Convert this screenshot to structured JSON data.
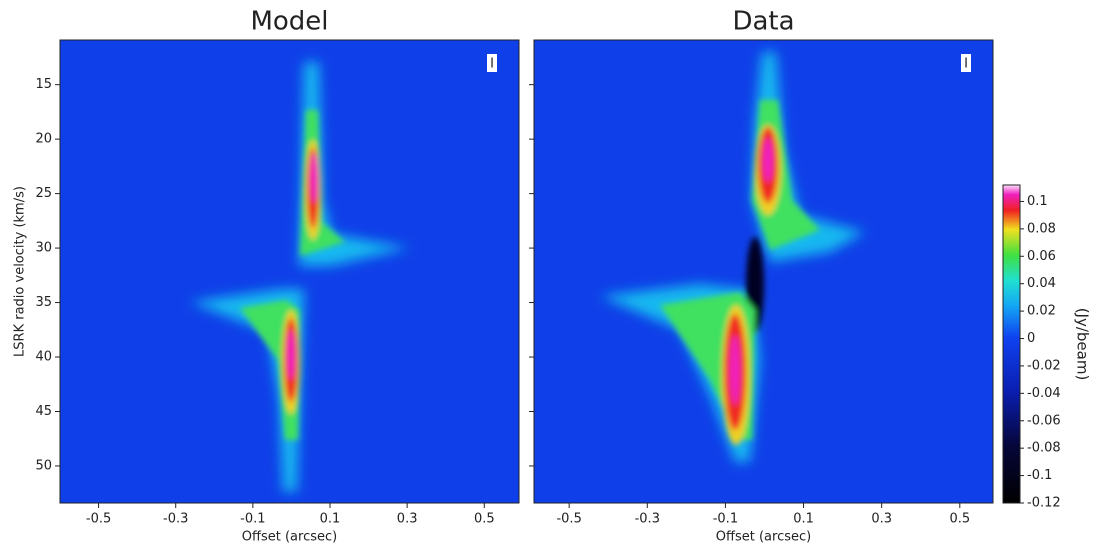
{
  "chart_data": [
    {
      "type": "heatmap",
      "title": "Model",
      "xlabel": "Offset (arcsec)",
      "ylabel": "LSRK radio velocity  (km/s)",
      "xlim": [
        -0.6,
        0.59
      ],
      "xticks": [
        -0.5,
        -0.3,
        -0.1,
        0.1,
        0.3,
        0.5
      ],
      "ylim": [
        10.9,
        53.4
      ],
      "y_inverted": true,
      "yticks": [
        15,
        20,
        25,
        30,
        35,
        40,
        45,
        50
      ],
      "y_tick_labels": true,
      "annotation": "I"
    },
    {
      "type": "heatmap",
      "title": "Data",
      "xlabel": "Offset (arcsec)",
      "xlim": [
        -0.59,
        0.585
      ],
      "xticks": [
        -0.5,
        -0.3,
        -0.1,
        0.1,
        0.3,
        0.5
      ],
      "ylim": [
        10.9,
        53.4
      ],
      "y_inverted": true,
      "yticks": [
        15,
        20,
        25,
        30,
        35,
        40,
        45,
        50
      ],
      "y_tick_labels": false,
      "annotation": "I",
      "colorbar": {
        "label": "(Jy/beam)",
        "lim": [
          -0.12,
          0.112
        ],
        "ticks": [
          0.1,
          0.08,
          0.06,
          0.04,
          0.02,
          0,
          -0.02,
          -0.04,
          -0.06,
          -0.08,
          -0.1,
          -0.12
        ]
      }
    }
  ]
}
